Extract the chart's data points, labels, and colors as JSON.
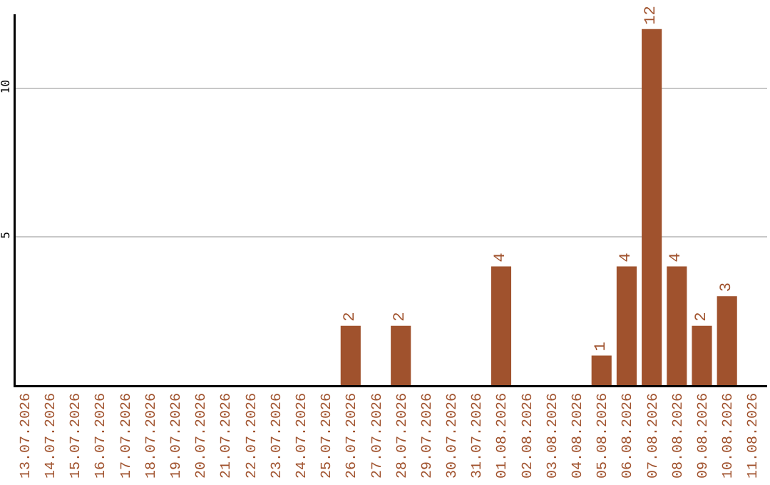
{
  "chart_data": {
    "type": "bar",
    "categories": [
      "13.07.2026",
      "14.07.2026",
      "15.07.2026",
      "16.07.2026",
      "17.07.2026",
      "18.07.2026",
      "19.07.2026",
      "20.07.2026",
      "21.07.2026",
      "22.07.2026",
      "23.07.2026",
      "24.07.2026",
      "25.07.2026",
      "26.07.2026",
      "27.07.2026",
      "28.07.2026",
      "29.07.2026",
      "30.07.2026",
      "31.07.2026",
      "01.08.2026",
      "02.08.2026",
      "03.08.2026",
      "04.08.2026",
      "05.08.2026",
      "06.08.2026",
      "07.08.2026",
      "08.08.2026",
      "09.08.2026",
      "10.08.2026",
      "11.08.2026"
    ],
    "values": [
      null,
      null,
      null,
      null,
      null,
      null,
      null,
      null,
      null,
      null,
      null,
      null,
      null,
      2,
      null,
      2,
      null,
      null,
      null,
      4,
      null,
      null,
      null,
      1,
      4,
      12,
      4,
      2,
      3,
      null
    ],
    "color": "#a0522d",
    "ylim": [
      0,
      12.5
    ],
    "yticks": [
      5,
      10
    ],
    "grid": "y",
    "data_labels": true,
    "legend": false
  }
}
